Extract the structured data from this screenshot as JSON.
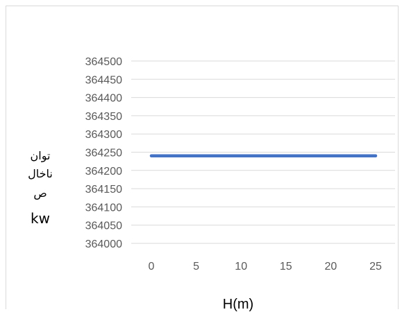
{
  "chart_data": {
    "type": "line",
    "title": "",
    "xlabel": "H(m)",
    "ylabel_lines": [
      "توان",
      "ناخال",
      "ص",
      "kw"
    ],
    "x": [
      0,
      5,
      10,
      15,
      20,
      25
    ],
    "y": [
      364240,
      364240,
      364240,
      364240,
      364240,
      364240
    ],
    "x_ticks": [
      "0",
      "5",
      "10",
      "15",
      "20",
      "25"
    ],
    "y_ticks": [
      "364000",
      "364050",
      "364100",
      "364150",
      "364200",
      "364250",
      "364300",
      "364350",
      "364400",
      "364450",
      "364500"
    ],
    "ylim": [
      364000,
      364500
    ],
    "grid": true,
    "series_color": "#4472c4",
    "grid_color": "#d9d9d9"
  }
}
